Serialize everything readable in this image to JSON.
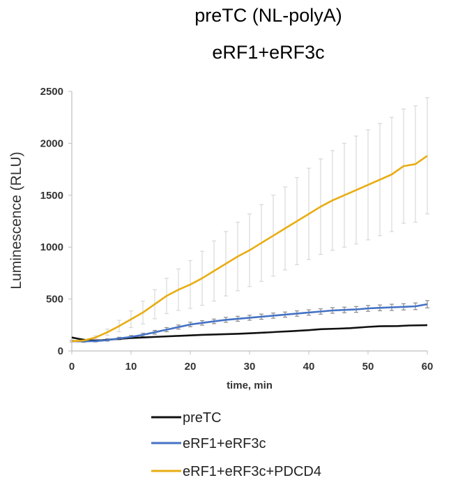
{
  "chart_data": {
    "type": "line",
    "title": "preTC (NL-polyA)",
    "subtitle": "eRF1+eRF3c",
    "xlabel": "time, min",
    "ylabel": "Luminescence (RLU)",
    "xlim": [
      0,
      60
    ],
    "ylim": [
      0,
      2500
    ],
    "xticks": [
      0,
      10,
      20,
      30,
      40,
      50,
      60
    ],
    "yticks": [
      0,
      500,
      1000,
      1500,
      2000,
      2500
    ],
    "grid": false,
    "legend_position": "bottom",
    "series": [
      {
        "name": "preTC",
        "color": "#111111",
        "x": [
          0,
          1,
          2,
          3,
          4,
          5,
          7,
          9,
          10,
          12,
          15,
          18,
          20,
          22,
          25,
          28,
          30,
          33,
          35,
          37,
          40,
          42,
          45,
          47,
          50,
          52,
          55,
          57,
          60
        ],
        "y": [
          130,
          118,
          108,
          102,
          100,
          103,
          112,
          120,
          125,
          130,
          138,
          145,
          150,
          155,
          160,
          165,
          170,
          178,
          185,
          190,
          200,
          210,
          215,
          220,
          232,
          238,
          240,
          245,
          248
        ],
        "error": []
      },
      {
        "name": "eRF1+eRF3c",
        "color": "#4472c4",
        "x": [
          0,
          2,
          4,
          6,
          8,
          10,
          12,
          14,
          16,
          18,
          20,
          22,
          24,
          26,
          28,
          30,
          32,
          34,
          36,
          38,
          40,
          42,
          44,
          46,
          48,
          50,
          52,
          54,
          56,
          58,
          60
        ],
        "y": [
          95,
          92,
          95,
          105,
          120,
          135,
          155,
          180,
          205,
          230,
          255,
          270,
          285,
          300,
          310,
          320,
          330,
          340,
          350,
          360,
          370,
          380,
          390,
          395,
          400,
          410,
          415,
          420,
          425,
          430,
          450
        ],
        "error": [
          8,
          8,
          8,
          10,
          12,
          14,
          16,
          18,
          20,
          20,
          22,
          22,
          22,
          24,
          24,
          24,
          25,
          25,
          25,
          26,
          26,
          26,
          27,
          27,
          28,
          28,
          28,
          30,
          30,
          32,
          35
        ]
      },
      {
        "name": "eRF1+eRF3c+PDCD4",
        "color": "#e8ad12",
        "x": [
          0,
          2,
          4,
          6,
          8,
          10,
          12,
          14,
          16,
          18,
          20,
          22,
          24,
          26,
          28,
          30,
          32,
          34,
          36,
          38,
          40,
          42,
          44,
          46,
          48,
          50,
          52,
          54,
          56,
          58,
          60
        ],
        "y": [
          95,
          100,
          130,
          180,
          240,
          305,
          370,
          450,
          530,
          590,
          640,
          700,
          770,
          840,
          910,
          970,
          1040,
          1110,
          1180,
          1250,
          1320,
          1390,
          1450,
          1500,
          1550,
          1600,
          1650,
          1700,
          1780,
          1800,
          1880
        ],
        "error": [
          5,
          8,
          15,
          30,
          55,
          80,
          110,
          140,
          170,
          200,
          230,
          260,
          290,
          310,
          330,
          350,
          370,
          390,
          400,
          420,
          440,
          460,
          480,
          500,
          520,
          530,
          540,
          550,
          550,
          560,
          560
        ]
      }
    ]
  }
}
